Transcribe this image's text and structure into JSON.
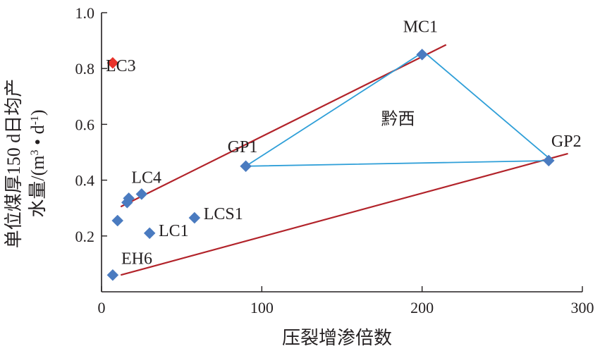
{
  "chart_data": {
    "type": "scatter",
    "xlabel": "压裂增渗倍数",
    "ylabel_line1": "单位煤厚150 d日均产",
    "ylabel_line2": "水量/(m",
    "ylabel_sup1": "3",
    "ylabel_mid": " • d",
    "ylabel_sup2": "-1",
    "ylabel_end": ")",
    "xlim": [
      0,
      300
    ],
    "ylim": [
      0,
      1.0
    ],
    "x_ticks": [
      {
        "value": 0,
        "label": "0"
      },
      {
        "value": 100,
        "label": "100"
      },
      {
        "value": 200,
        "label": "200"
      },
      {
        "value": 300,
        "label": "300"
      }
    ],
    "y_ticks": [
      {
        "value": 0.2,
        "label": "0.2"
      },
      {
        "value": 0.4,
        "label": "0.4"
      },
      {
        "value": 0.6,
        "label": "0.6"
      },
      {
        "value": 0.8,
        "label": "0.8"
      },
      {
        "value": 1.0,
        "label": "1.0"
      }
    ],
    "grid": false,
    "points": [
      {
        "x": 7,
        "y": 0.82,
        "color": "#e8322a"
      },
      {
        "x": 7,
        "y": 0.06,
        "color": "#4a7bc0"
      },
      {
        "x": 10,
        "y": 0.255,
        "color": "#4a7bc0"
      },
      {
        "x": 16,
        "y": 0.32,
        "color": "#4a7bc0"
      },
      {
        "x": 17,
        "y": 0.335,
        "color": "#4a7bc0"
      },
      {
        "x": 25,
        "y": 0.35,
        "color": "#4a7bc0"
      },
      {
        "x": 30,
        "y": 0.21,
        "color": "#4a7bc0"
      },
      {
        "x": 58,
        "y": 0.265,
        "color": "#4a7bc0"
      },
      {
        "x": 90,
        "y": 0.45,
        "color": "#4a7bc0"
      },
      {
        "x": 200,
        "y": 0.85,
        "color": "#4a7bc0"
      },
      {
        "x": 279,
        "y": 0.47,
        "color": "#4a7bc0"
      }
    ],
    "labels": [
      {
        "text": "LC3",
        "x": 12,
        "y": 0.79
      },
      {
        "text": "LC4",
        "x": 28,
        "y": 0.39
      },
      {
        "text": "LC1",
        "x": 45,
        "y": 0.2
      },
      {
        "text": "LCS1",
        "x": 76,
        "y": 0.26
      },
      {
        "text": "EH6",
        "x": 22,
        "y": 0.1
      },
      {
        "text": "GP1",
        "x": 88,
        "y": 0.5
      },
      {
        "text": "MC1",
        "x": 199,
        "y": 0.93
      },
      {
        "text": "GP2",
        "x": 290,
        "y": 0.52
      },
      {
        "text": "黔西",
        "x": 185,
        "y": 0.6
      }
    ],
    "trend_lines": [
      {
        "color": "#b2232a",
        "x1": 12,
        "y1": 0.305,
        "x2": 215,
        "y2": 0.885
      },
      {
        "color": "#b2232a",
        "x1": 12,
        "y1": 0.06,
        "x2": 291,
        "y2": 0.495
      }
    ],
    "triangle": {
      "color": "#2f9fd8",
      "vertices": [
        [
          90,
          0.45
        ],
        [
          201,
          0.86
        ],
        [
          281,
          0.47
        ]
      ]
    }
  }
}
